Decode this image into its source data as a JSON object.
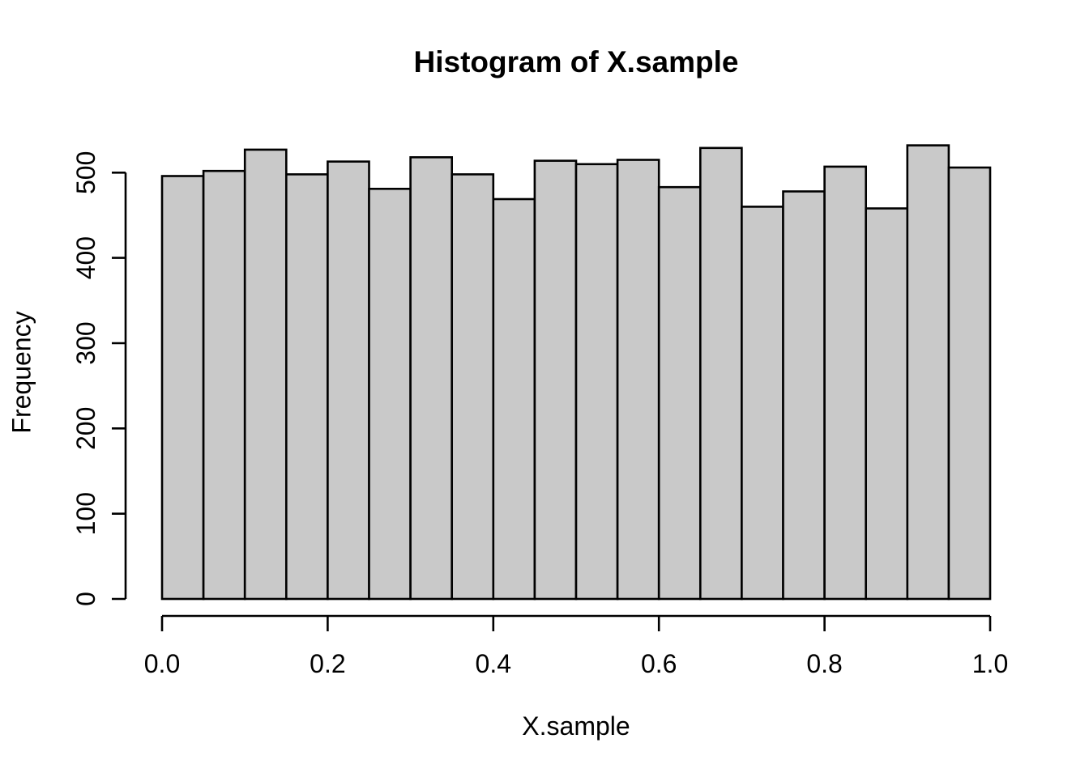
{
  "chart_data": {
    "type": "bar",
    "subtype": "histogram",
    "title": "Histogram of X.sample",
    "xlabel": "X.sample",
    "ylabel": "Frequency",
    "bin_start": 0.0,
    "bin_width": 0.05,
    "counts": [
      496,
      502,
      527,
      498,
      513,
      481,
      518,
      498,
      469,
      514,
      510,
      515,
      483,
      529,
      460,
      478,
      507,
      458,
      532,
      506
    ],
    "xlim": [
      0.0,
      1.0
    ],
    "ylim": [
      0,
      500
    ],
    "x_tick_values": [
      0.0,
      0.2,
      0.4,
      0.6,
      0.8,
      1.0
    ],
    "x_tick_labels": [
      "0.0",
      "0.2",
      "0.4",
      "0.6",
      "0.8",
      "1.0"
    ],
    "y_tick_values": [
      0,
      100,
      200,
      300,
      400,
      500
    ],
    "y_tick_labels": [
      "0",
      "100",
      "200",
      "300",
      "400",
      "500"
    ],
    "bar_fill": "#C9C9C9",
    "bar_stroke": "#000000",
    "axis_color": "#000000",
    "background": "#FFFFFF",
    "grid": "off",
    "legend": "none"
  }
}
